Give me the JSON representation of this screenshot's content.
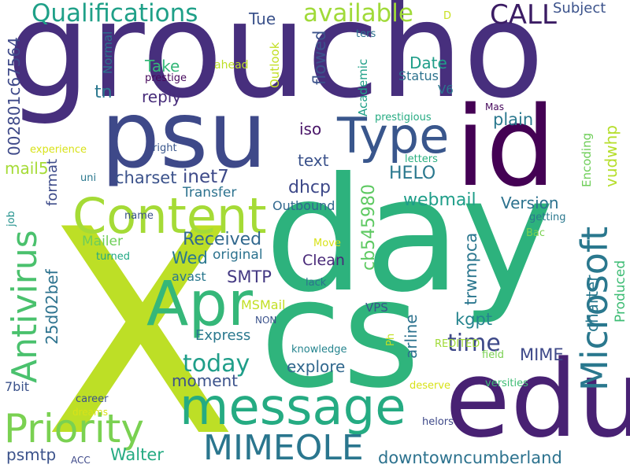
{
  "wordcloud": {
    "words": [
      {
        "text": "groucho",
        "color": "#472f7d"
      },
      {
        "text": "day",
        "color": "#2db27d"
      },
      {
        "text": "X",
        "color": "#bddf26"
      },
      {
        "text": "edu",
        "color": "#482173"
      },
      {
        "text": "cs",
        "color": "#2fb47c"
      },
      {
        "text": "psu",
        "color": "#3e4989"
      },
      {
        "text": "id",
        "color": "#440154"
      },
      {
        "text": "Content",
        "color": "#a5db36"
      },
      {
        "text": "message",
        "color": "#25ab82"
      },
      {
        "text": "Apr",
        "color": "#35b779"
      },
      {
        "text": "Type",
        "color": "#39568c"
      },
      {
        "text": "Priority",
        "color": "#7ad151"
      },
      {
        "text": "Microsoft",
        "color": "#2a788e"
      },
      {
        "text": "MIMEOLE",
        "color": "#2a768e"
      },
      {
        "text": "Antivirus",
        "color": "#4ac16d"
      },
      {
        "text": "Qualifications",
        "color": "#1fa088"
      },
      {
        "text": "available",
        "color": "#a0da39"
      },
      {
        "text": "CALL",
        "color": "#3b1c64"
      },
      {
        "text": "Subject",
        "color": "#3b528b"
      },
      {
        "text": "D",
        "color": "#c8e020"
      },
      {
        "text": "Tue",
        "color": "#3b528b"
      },
      {
        "text": "Outlook",
        "color": "#c2df23"
      },
      {
        "text": "Normal",
        "color": "#2c728e"
      },
      {
        "text": "Take",
        "color": "#35b779"
      },
      {
        "text": "ahead",
        "color": "#bddf26"
      },
      {
        "text": "tn",
        "color": "#2a788e"
      },
      {
        "text": "reply",
        "color": "#472c7a"
      },
      {
        "text": "prestige",
        "color": "#46085c"
      },
      {
        "text": "flowed",
        "color": "#3b528b"
      },
      {
        "text": "Date",
        "color": "#1f9e89"
      },
      {
        "text": "Status",
        "color": "#2c728e"
      },
      {
        "text": "ters",
        "color": "#2c728e"
      },
      {
        "text": "Academic",
        "color": "#1fa088"
      },
      {
        "text": "V6",
        "color": "#2a778e"
      },
      {
        "text": "Mas",
        "color": "#46085c"
      },
      {
        "text": "prestigious",
        "color": "#25ab82"
      },
      {
        "text": "plain",
        "color": "#2a788e"
      },
      {
        "text": "Encoding",
        "color": "#6ece58"
      },
      {
        "text": "vudwhp",
        "color": "#b5de2b"
      },
      {
        "text": "002801c67564",
        "color": "#3e4989"
      },
      {
        "text": "experience",
        "color": "#d8e219"
      },
      {
        "text": "right",
        "color": "#39568c"
      },
      {
        "text": "iso",
        "color": "#481467"
      },
      {
        "text": "letters",
        "color": "#29af7f"
      },
      {
        "text": "mail5",
        "color": "#a5db36"
      },
      {
        "text": "format",
        "color": "#3e4c8a"
      },
      {
        "text": "charset",
        "color": "#3b528b"
      },
      {
        "text": "inet7",
        "color": "#3e4a89"
      },
      {
        "text": "text",
        "color": "#3b528b"
      },
      {
        "text": "HELO",
        "color": "#2a788e"
      },
      {
        "text": "uni",
        "color": "#2a788e"
      },
      {
        "text": "Transfer",
        "color": "#2c728e"
      },
      {
        "text": "dhcp",
        "color": "#3e4989"
      },
      {
        "text": "cb545980",
        "color": "#5ec962"
      },
      {
        "text": "webmail",
        "color": "#1f9e89"
      },
      {
        "text": "Version",
        "color": "#2c728e"
      },
      {
        "text": "getting",
        "color": "#2a788e"
      },
      {
        "text": "name",
        "color": "#3b528b"
      },
      {
        "text": "Outbound",
        "color": "#31688e"
      },
      {
        "text": "job",
        "color": "#21918c"
      },
      {
        "text": "Mailer",
        "color": "#6ece58"
      },
      {
        "text": "Received",
        "color": "#31688e"
      },
      {
        "text": "trwmpca",
        "color": "#2a768e"
      },
      {
        "text": "Bac",
        "color": "#7ad151"
      },
      {
        "text": "charter",
        "color": "#2a788e"
      },
      {
        "text": "turned",
        "color": "#22a884"
      },
      {
        "text": "original",
        "color": "#2c728e"
      },
      {
        "text": "Move",
        "color": "#d8e219"
      },
      {
        "text": "Clean",
        "color": "#482878"
      },
      {
        "text": "Produced",
        "color": "#3dbc74"
      },
      {
        "text": "Wed",
        "color": "#2a788e"
      },
      {
        "text": "25d02bef",
        "color": "#2c728e"
      },
      {
        "text": "SMTP",
        "color": "#443983"
      },
      {
        "text": "avast",
        "color": "#2a788e"
      },
      {
        "text": "lack",
        "color": "#2c728e"
      },
      {
        "text": "MSMail",
        "color": "#c2df23"
      },
      {
        "text": "arline",
        "color": "#2c728e"
      },
      {
        "text": "kgpt",
        "color": "#25848e"
      },
      {
        "text": "today",
        "color": "#1f9e89"
      },
      {
        "text": "time",
        "color": "#3e4989"
      },
      {
        "text": "VPS",
        "color": "#3b528b"
      },
      {
        "text": "NON",
        "color": "#3b528b"
      },
      {
        "text": "Express",
        "color": "#2a788e"
      },
      {
        "text": "Ph",
        "color": "#c2df23"
      },
      {
        "text": "explore",
        "color": "#31688e"
      },
      {
        "text": "knowledge",
        "color": "#25848e"
      },
      {
        "text": "field",
        "color": "#7ad151"
      },
      {
        "text": "REDITED",
        "color": "#a0da39"
      },
      {
        "text": "MIME",
        "color": "#3e4989"
      },
      {
        "text": "moment",
        "color": "#3b528b"
      },
      {
        "text": "7bit",
        "color": "#3b528b"
      },
      {
        "text": "deserve",
        "color": "#d8e219"
      },
      {
        "text": "versities",
        "color": "#3dbc74"
      },
      {
        "text": "career",
        "color": "#3b528b"
      },
      {
        "text": "dreams",
        "color": "#d8e219"
      },
      {
        "text": "helors",
        "color": "#3e4989"
      },
      {
        "text": "psmtp",
        "color": "#3b528b"
      },
      {
        "text": "ACC",
        "color": "#3e4989"
      },
      {
        "text": "Walter",
        "color": "#25ab82"
      },
      {
        "text": "downtowncumberland",
        "color": "#2c728e"
      }
    ]
  }
}
